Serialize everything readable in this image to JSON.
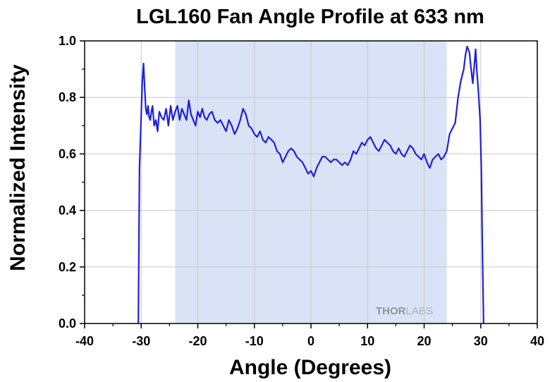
{
  "chart_data": {
    "type": "line",
    "title": "LGL160 Fan Angle Profile at 633 nm",
    "xlabel": "Angle (Degrees)",
    "ylabel": "Normalized Intensity",
    "xlim": [
      -40,
      40
    ],
    "ylim": [
      0,
      1.0
    ],
    "xticks": [
      -40,
      -30,
      -20,
      -10,
      0,
      10,
      20,
      30,
      40
    ],
    "xtick_labels": [
      "-40",
      "-30",
      "-20",
      "-10",
      "0",
      "10",
      "20",
      "30",
      "40"
    ],
    "yticks": [
      0,
      0.2,
      0.4,
      0.6,
      0.8,
      1.0
    ],
    "ytick_labels": [
      "0.0",
      "0.2",
      "0.4",
      "0.6",
      "0.8",
      "1.0"
    ],
    "grid": true,
    "highlight_region": [
      -24,
      24
    ],
    "colors": {
      "line": "#1f1fdc",
      "highlight": "#dae3f5",
      "grid": "#c8c8c8"
    },
    "watermark": {
      "bold": "THOR",
      "light": "LABS"
    },
    "series": [
      {
        "x": [
          -30.5,
          -30.3,
          -30.0,
          -29.8,
          -29.6,
          -29.4,
          -29.2,
          -29.0,
          -28.8,
          -28.6,
          -28.4,
          -28.2,
          -28.0,
          -27.7,
          -27.4,
          -27.1,
          -26.8,
          -26.4,
          -26.0,
          -25.6,
          -25.2,
          -24.8,
          -24.4,
          -24.0,
          -23.6,
          -23.2,
          -22.8,
          -22.4,
          -22.0,
          -21.6,
          -21.2,
          -20.8,
          -20.4,
          -20.0,
          -19.6,
          -19.2,
          -18.8,
          -18.4,
          -18.0,
          -17.5,
          -17.0,
          -16.5,
          -16.0,
          -15.5,
          -15.0,
          -14.5,
          -14.0,
          -13.5,
          -13.0,
          -12.5,
          -12.0,
          -11.5,
          -11.0,
          -10.5,
          -10.0,
          -9.5,
          -9.0,
          -8.5,
          -8.0,
          -7.5,
          -7.0,
          -6.5,
          -6.0,
          -5.5,
          -5.0,
          -4.5,
          -4.0,
          -3.5,
          -3.0,
          -2.5,
          -2.0,
          -1.5,
          -1.0,
          -0.5,
          0.0,
          0.5,
          1.0,
          1.5,
          2.0,
          2.5,
          3.0,
          3.5,
          4.0,
          4.5,
          5.0,
          5.5,
          6.0,
          6.5,
          7.0,
          7.5,
          8.0,
          8.5,
          9.0,
          9.5,
          10.0,
          10.5,
          11.0,
          11.5,
          12.0,
          12.5,
          13.0,
          13.5,
          14.0,
          14.5,
          15.0,
          15.5,
          16.0,
          16.5,
          17.0,
          17.5,
          18.0,
          18.5,
          19.0,
          19.5,
          20.0,
          20.5,
          21.0,
          21.5,
          22.0,
          22.5,
          23.0,
          23.5,
          24.0,
          24.5,
          25.0,
          25.5,
          26.0,
          26.5,
          27.0,
          27.3,
          27.6,
          28.0,
          28.3,
          28.6,
          28.9,
          29.1,
          29.3,
          29.6,
          29.9,
          30.1,
          30.3,
          30.5
        ],
        "y": [
          0.0,
          0.55,
          0.74,
          0.86,
          0.92,
          0.84,
          0.76,
          0.74,
          0.77,
          0.73,
          0.72,
          0.75,
          0.77,
          0.7,
          0.72,
          0.68,
          0.75,
          0.73,
          0.72,
          0.76,
          0.7,
          0.77,
          0.72,
          0.75,
          0.77,
          0.72,
          0.76,
          0.74,
          0.72,
          0.79,
          0.74,
          0.72,
          0.7,
          0.75,
          0.73,
          0.76,
          0.73,
          0.72,
          0.74,
          0.75,
          0.72,
          0.71,
          0.72,
          0.7,
          0.68,
          0.72,
          0.7,
          0.67,
          0.69,
          0.72,
          0.76,
          0.74,
          0.7,
          0.69,
          0.67,
          0.66,
          0.68,
          0.65,
          0.64,
          0.66,
          0.65,
          0.64,
          0.61,
          0.6,
          0.57,
          0.59,
          0.61,
          0.62,
          0.61,
          0.59,
          0.58,
          0.57,
          0.55,
          0.53,
          0.54,
          0.52,
          0.55,
          0.57,
          0.59,
          0.59,
          0.58,
          0.57,
          0.58,
          0.58,
          0.57,
          0.56,
          0.57,
          0.56,
          0.58,
          0.61,
          0.6,
          0.62,
          0.64,
          0.63,
          0.65,
          0.66,
          0.64,
          0.62,
          0.61,
          0.63,
          0.65,
          0.64,
          0.63,
          0.61,
          0.6,
          0.62,
          0.6,
          0.59,
          0.61,
          0.63,
          0.62,
          0.6,
          0.59,
          0.58,
          0.6,
          0.57,
          0.55,
          0.58,
          0.59,
          0.6,
          0.58,
          0.59,
          0.61,
          0.67,
          0.69,
          0.71,
          0.8,
          0.86,
          0.9,
          0.95,
          0.98,
          0.96,
          0.9,
          0.85,
          0.92,
          0.97,
          0.9,
          0.82,
          0.72,
          0.55,
          0.25,
          0.0
        ]
      }
    ]
  }
}
